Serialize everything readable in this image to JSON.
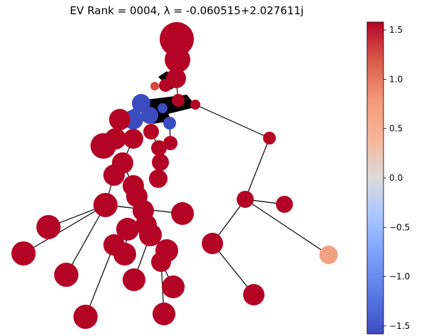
{
  "title": "EV Rank = 0004, λ =  -0.060515+2.027611j",
  "colorbar": {
    "ticks": [
      {
        "value": 1.5,
        "label": "1.5"
      },
      {
        "value": 1.0,
        "label": "1.0"
      },
      {
        "value": 0.5,
        "label": "0.5"
      },
      {
        "value": 0.0,
        "label": "0.0"
      },
      {
        "value": -0.5,
        "label": "−0.5"
      },
      {
        "value": -1.0,
        "label": "−1.0"
      },
      {
        "value": -1.5,
        "label": "−1.5"
      }
    ],
    "range": [
      -1.58,
      1.58
    ],
    "colormap": "coolwarm",
    "colors": {
      "low": "#3b4cc0",
      "mid": "#dddddd",
      "high": "#b40426"
    }
  },
  "graph": {
    "node_color_high": "#b40426",
    "node_color_low": "#3b4cc0",
    "node_color_salmon": "#f2a284",
    "edge_color": "#000000"
  }
}
